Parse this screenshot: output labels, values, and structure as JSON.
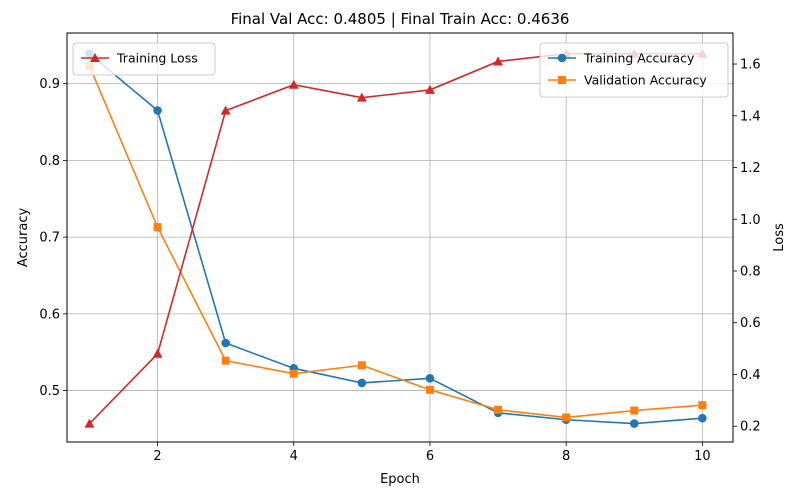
{
  "chart_data": {
    "type": "line",
    "title": "Final Val Acc: 0.4805 | Final Train Acc: 0.4636",
    "xlabel": "Epoch",
    "ylabel_left": "Accuracy",
    "ylabel_right": "Loss",
    "x": [
      1,
      2,
      3,
      4,
      5,
      6,
      7,
      8,
      9,
      10
    ],
    "xlim": [
      0.67,
      10.45
    ],
    "xticks": [
      2,
      4,
      6,
      8,
      10
    ],
    "ylim_left": [
      0.433,
      0.966
    ],
    "yticks_left": [
      0.5,
      0.6,
      0.7,
      0.8,
      0.9
    ],
    "ylim_right": [
      0.139,
      1.72
    ],
    "yticks_right": [
      0.2,
      0.4,
      0.6,
      0.8,
      1.0,
      1.2,
      1.4,
      1.6
    ],
    "grid": true,
    "legend_left_position": "top-left",
    "legend_right_position": "top-right",
    "series": [
      {
        "name": "Training Accuracy",
        "axis": "left",
        "marker": "circle",
        "color": "#1f77b4",
        "values": [
          0.939,
          0.865,
          0.562,
          0.529,
          0.51,
          0.516,
          0.471,
          0.462,
          0.457,
          0.464
        ]
      },
      {
        "name": "Validation Accuracy",
        "axis": "left",
        "marker": "square",
        "color": "#ff7f0e",
        "values": [
          0.923,
          0.713,
          0.539,
          0.522,
          0.533,
          0.501,
          0.475,
          0.465,
          0.474,
          0.481
        ]
      },
      {
        "name": "Training Loss",
        "axis": "right",
        "marker": "triangle",
        "color": "#d62728",
        "values": [
          0.21,
          0.48,
          1.42,
          1.52,
          1.47,
          1.5,
          1.61,
          1.64,
          1.64,
          1.64
        ]
      }
    ]
  }
}
